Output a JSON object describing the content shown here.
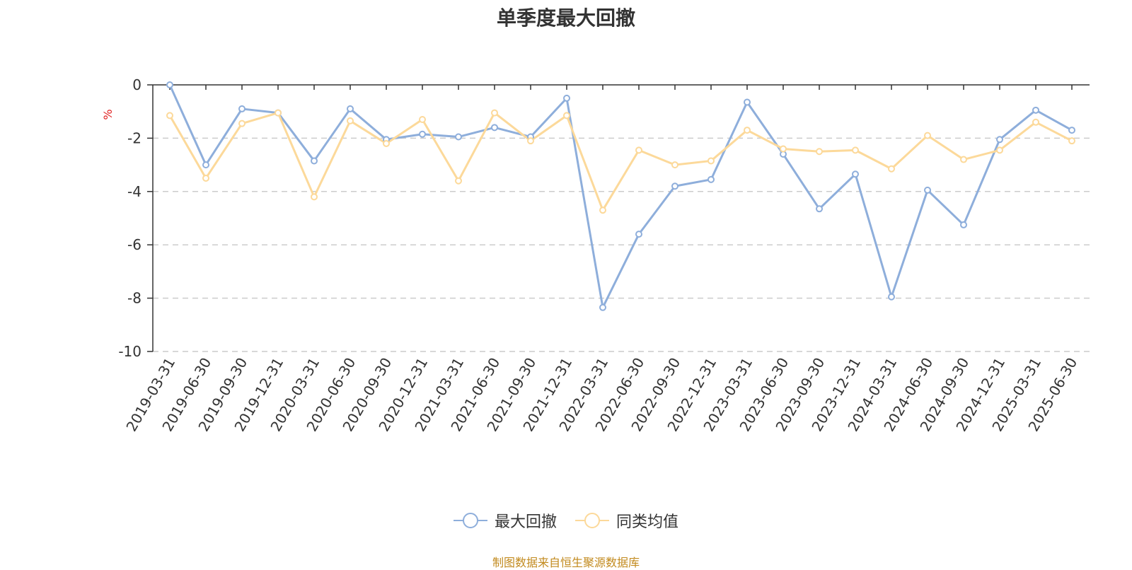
{
  "chart_data": {
    "type": "line",
    "title": "单季度最大回撤",
    "ylabel": "%",
    "ylim": [
      -10,
      0
    ],
    "yticks": [
      0,
      -2,
      -4,
      -6,
      -8,
      -10
    ],
    "grid": "horizontal-dashed",
    "legend_position": "bottom-center",
    "categories": [
      "2019-03-31",
      "2019-06-30",
      "2019-09-30",
      "2019-12-31",
      "2020-03-31",
      "2020-06-30",
      "2020-09-30",
      "2020-12-31",
      "2021-03-31",
      "2021-06-30",
      "2021-09-30",
      "2021-12-31",
      "2022-03-31",
      "2022-06-30",
      "2022-09-30",
      "2022-12-31",
      "2023-03-31",
      "2023-06-30",
      "2023-09-30",
      "2023-12-31",
      "2024-03-31",
      "2024-06-30",
      "2024-09-30",
      "2024-12-31",
      "2025-03-31",
      "2025-06-30"
    ],
    "series": [
      {
        "name": "最大回撤",
        "color": "#8eaedb",
        "values": [
          0,
          -3.0,
          -0.9,
          -1.05,
          -2.85,
          -0.9,
          -2.05,
          -1.85,
          -1.95,
          -1.6,
          -1.95,
          -0.5,
          -8.35,
          -5.6,
          -3.8,
          -3.55,
          -0.65,
          -2.6,
          -4.65,
          -3.35,
          -7.95,
          -3.95,
          -5.25,
          -2.05,
          -0.95,
          -1.7
        ]
      },
      {
        "name": "同类均值",
        "color": "#fcd99a",
        "values": [
          -1.15,
          -3.5,
          -1.45,
          -1.05,
          -4.2,
          -1.35,
          -2.2,
          -1.3,
          -3.6,
          -1.05,
          -2.1,
          -1.15,
          -4.7,
          -2.45,
          -3.0,
          -2.85,
          -1.7,
          -2.4,
          -2.5,
          -2.45,
          -3.15,
          -1.9,
          -2.8,
          -2.45,
          -1.4,
          -2.1
        ]
      }
    ]
  },
  "source_note": "制图数据来自恒生聚源数据库"
}
